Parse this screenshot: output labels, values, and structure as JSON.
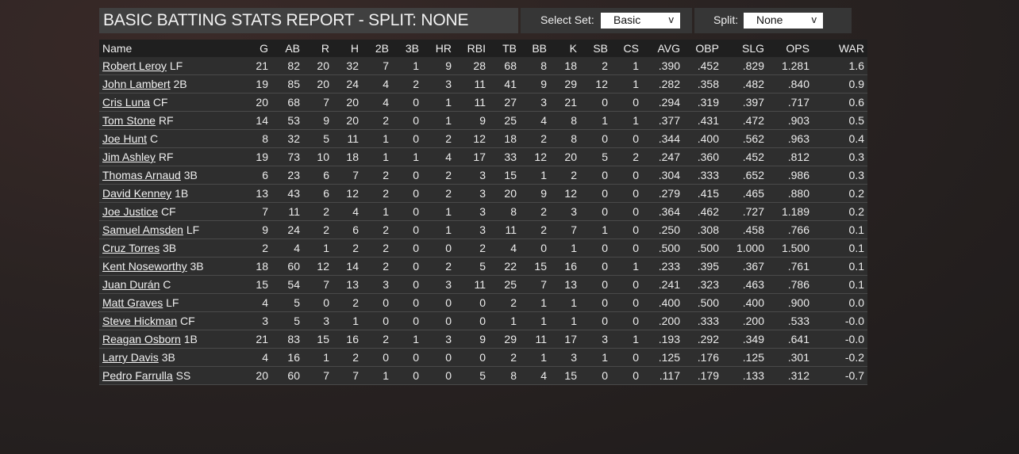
{
  "header": {
    "title": "BASIC BATTING STATS REPORT - SPLIT: NONE"
  },
  "controls": {
    "select_set_label": "Select Set:",
    "select_set_value": "Basic",
    "split_label": "Split:",
    "split_value": "None",
    "chevron": "v"
  },
  "table": {
    "columns": [
      "Name",
      "G",
      "AB",
      "R",
      "H",
      "2B",
      "3B",
      "HR",
      "RBI",
      "TB",
      "BB",
      "K",
      "SB",
      "CS",
      "AVG",
      "OBP",
      "SLG",
      "OPS",
      "WAR"
    ],
    "rows": [
      {
        "name": "Robert Leroy",
        "pos": "LF",
        "stats": [
          "21",
          "82",
          "20",
          "32",
          "7",
          "1",
          "9",
          "28",
          "68",
          "8",
          "18",
          "2",
          "1",
          ".390",
          ".452",
          ".829",
          "1.281",
          "1.6"
        ]
      },
      {
        "name": "John Lambert",
        "pos": "2B",
        "stats": [
          "19",
          "85",
          "20",
          "24",
          "4",
          "2",
          "3",
          "11",
          "41",
          "9",
          "29",
          "12",
          "1",
          ".282",
          ".358",
          ".482",
          ".840",
          "0.9"
        ]
      },
      {
        "name": "Cris Luna",
        "pos": "CF",
        "stats": [
          "20",
          "68",
          "7",
          "20",
          "4",
          "0",
          "1",
          "11",
          "27",
          "3",
          "21",
          "0",
          "0",
          ".294",
          ".319",
          ".397",
          ".717",
          "0.6"
        ]
      },
      {
        "name": "Tom Stone",
        "pos": "RF",
        "stats": [
          "14",
          "53",
          "9",
          "20",
          "2",
          "0",
          "1",
          "9",
          "25",
          "4",
          "8",
          "1",
          "1",
          ".377",
          ".431",
          ".472",
          ".903",
          "0.5"
        ]
      },
      {
        "name": "Joe Hunt",
        "pos": "C",
        "stats": [
          "8",
          "32",
          "5",
          "11",
          "1",
          "0",
          "2",
          "12",
          "18",
          "2",
          "8",
          "0",
          "0",
          ".344",
          ".400",
          ".562",
          ".963",
          "0.4"
        ]
      },
      {
        "name": "Jim Ashley",
        "pos": "RF",
        "stats": [
          "19",
          "73",
          "10",
          "18",
          "1",
          "1",
          "4",
          "17",
          "33",
          "12",
          "20",
          "5",
          "2",
          ".247",
          ".360",
          ".452",
          ".812",
          "0.3"
        ]
      },
      {
        "name": "Thomas Arnaud",
        "pos": "3B",
        "stats": [
          "6",
          "23",
          "6",
          "7",
          "2",
          "0",
          "2",
          "3",
          "15",
          "1",
          "2",
          "0",
          "0",
          ".304",
          ".333",
          ".652",
          ".986",
          "0.3"
        ]
      },
      {
        "name": "David Kenney",
        "pos": "1B",
        "stats": [
          "13",
          "43",
          "6",
          "12",
          "2",
          "0",
          "2",
          "3",
          "20",
          "9",
          "12",
          "0",
          "0",
          ".279",
          ".415",
          ".465",
          ".880",
          "0.2"
        ]
      },
      {
        "name": "Joe Justice",
        "pos": "CF",
        "stats": [
          "7",
          "11",
          "2",
          "4",
          "1",
          "0",
          "1",
          "3",
          "8",
          "2",
          "3",
          "0",
          "0",
          ".364",
          ".462",
          ".727",
          "1.189",
          "0.2"
        ]
      },
      {
        "name": "Samuel Amsden",
        "pos": "LF",
        "stats": [
          "9",
          "24",
          "2",
          "6",
          "2",
          "0",
          "1",
          "3",
          "11",
          "2",
          "7",
          "1",
          "0",
          ".250",
          ".308",
          ".458",
          ".766",
          "0.1"
        ]
      },
      {
        "name": "Cruz Torres",
        "pos": "3B",
        "stats": [
          "2",
          "4",
          "1",
          "2",
          "2",
          "0",
          "0",
          "2",
          "4",
          "0",
          "1",
          "0",
          "0",
          ".500",
          ".500",
          "1.000",
          "1.500",
          "0.1"
        ]
      },
      {
        "name": "Kent Noseworthy",
        "pos": "3B",
        "stats": [
          "18",
          "60",
          "12",
          "14",
          "2",
          "0",
          "2",
          "5",
          "22",
          "15",
          "16",
          "0",
          "1",
          ".233",
          ".395",
          ".367",
          ".761",
          "0.1"
        ]
      },
      {
        "name": "Juan Durán",
        "pos": "C",
        "stats": [
          "15",
          "54",
          "7",
          "13",
          "3",
          "0",
          "3",
          "11",
          "25",
          "7",
          "13",
          "0",
          "0",
          ".241",
          ".323",
          ".463",
          ".786",
          "0.1"
        ]
      },
      {
        "name": "Matt Graves",
        "pos": "LF",
        "stats": [
          "4",
          "5",
          "0",
          "2",
          "0",
          "0",
          "0",
          "0",
          "2",
          "1",
          "1",
          "0",
          "0",
          ".400",
          ".500",
          ".400",
          ".900",
          "0.0"
        ]
      },
      {
        "name": "Steve Hickman",
        "pos": "CF",
        "stats": [
          "3",
          "5",
          "3",
          "1",
          "0",
          "0",
          "0",
          "0",
          "1",
          "1",
          "1",
          "0",
          "0",
          ".200",
          ".333",
          ".200",
          ".533",
          "-0.0"
        ]
      },
      {
        "name": "Reagan Osborn",
        "pos": "1B",
        "stats": [
          "21",
          "83",
          "15",
          "16",
          "2",
          "1",
          "3",
          "9",
          "29",
          "11",
          "17",
          "3",
          "1",
          ".193",
          ".292",
          ".349",
          ".641",
          "-0.0"
        ]
      },
      {
        "name": "Larry Davis",
        "pos": "3B",
        "stats": [
          "4",
          "16",
          "1",
          "2",
          "0",
          "0",
          "0",
          "0",
          "2",
          "1",
          "3",
          "1",
          "0",
          ".125",
          ".176",
          ".125",
          ".301",
          "-0.2"
        ]
      },
      {
        "name": "Pedro Farrulla",
        "pos": "SS",
        "stats": [
          "20",
          "60",
          "7",
          "7",
          "1",
          "0",
          "0",
          "5",
          "8",
          "4",
          "15",
          "0",
          "0",
          ".117",
          ".179",
          ".133",
          ".312",
          "-0.7"
        ]
      }
    ]
  }
}
